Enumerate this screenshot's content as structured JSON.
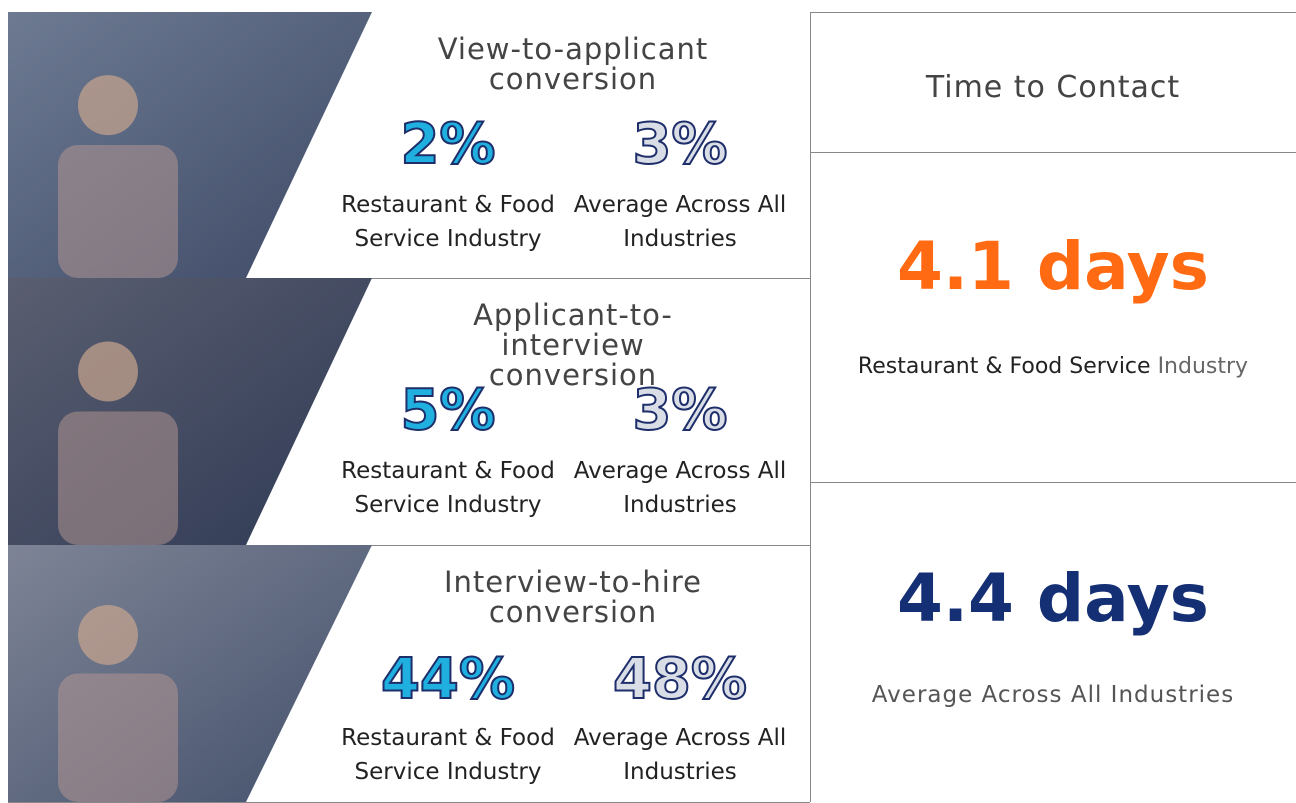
{
  "rows": [
    {
      "title": "View-to-applicant conversion",
      "industry_value": "2%",
      "industry_label": "Restaurant & Food Service Industry",
      "average_value": "3%",
      "average_label": "Average Across All Industries"
    },
    {
      "title": "Applicant-to-interview conversion",
      "industry_value": "5%",
      "industry_label": "Restaurant & Food Service Industry",
      "average_value": "3%",
      "average_label": "Average Across All Industries"
    },
    {
      "title": "Interview-to-hire conversion",
      "industry_value": "44%",
      "industry_label": "Restaurant & Food Service Industry",
      "average_value": "48%",
      "average_label": "Average Across All Industries"
    }
  ],
  "panel": {
    "title": "Time to Contact",
    "industry_value": "4.1 days",
    "industry_label": "Restaurant & Food Service",
    "industry_label_suffix": "Industry",
    "average_value": "4.4 days",
    "average_label": "Average Across All Industries"
  }
}
